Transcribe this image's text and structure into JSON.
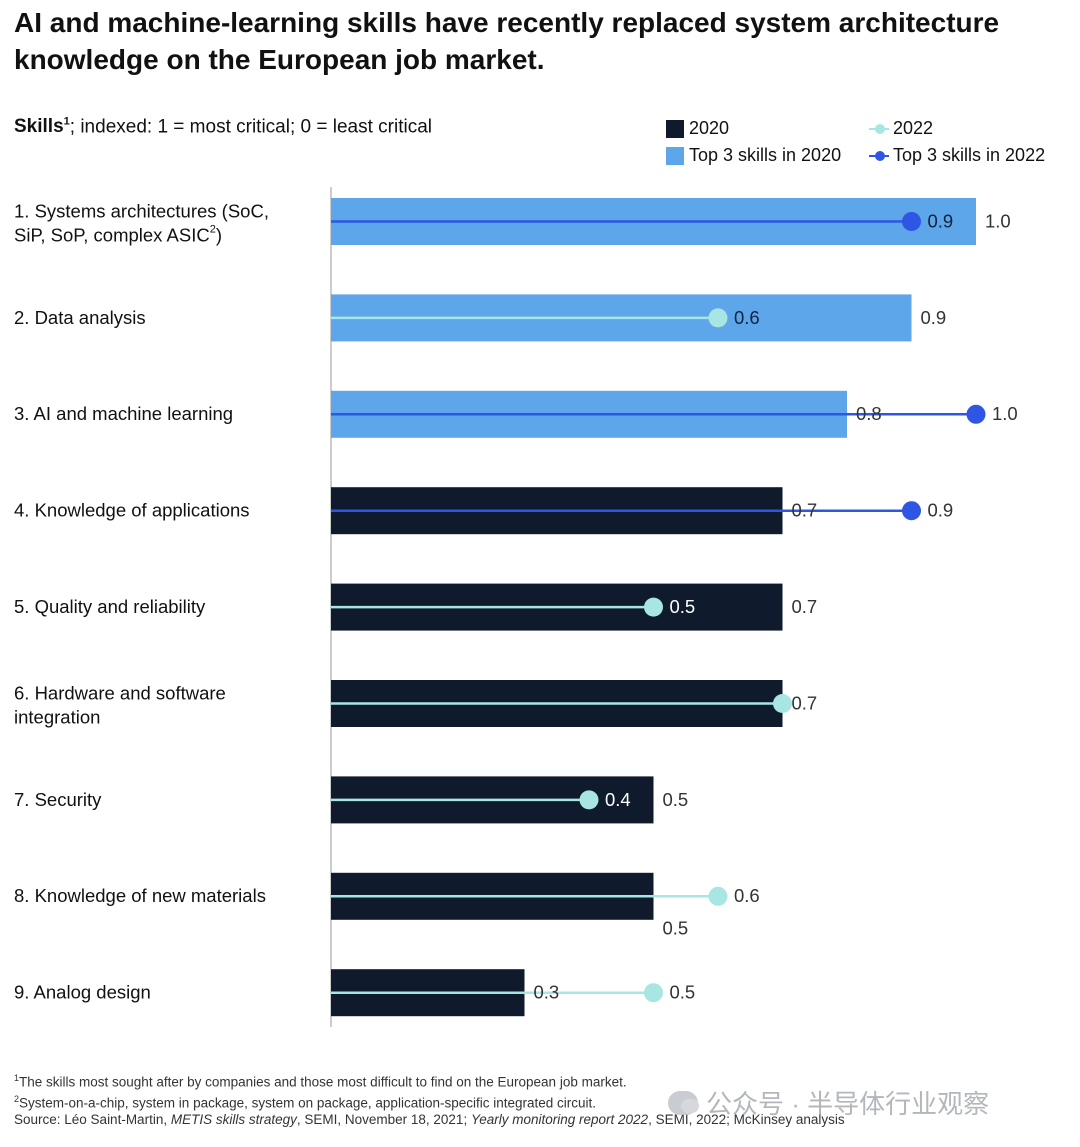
{
  "chart_data": {
    "type": "bar",
    "title": "AI and machine-learning skills have recently replaced system architecture knowledge on the European job market.",
    "subtitle_label": "Skills",
    "subtitle_sup": "1",
    "subtitle_rest": "; indexed: 1 = most critical; 0 = least critical",
    "xlim": [
      0,
      1.0
    ],
    "legend": {
      "bar_2020": "2020",
      "bar_top3_2020": "Top 3 skills in 2020",
      "marker_2022": "2022",
      "marker_top3_2022": "Top 3 skills in 2022"
    },
    "categories": [
      {
        "label_lines": [
          "1. Systems architectures (SoC,",
          "SiP, SoP, complex ASIC"
        ],
        "label_sup": "2",
        "label_tail": ")",
        "v2020": 1.0,
        "l2020": "1.0",
        "v2022": 0.9,
        "l2022": "0.9",
        "top3_2020": true,
        "top3_2022": true
      },
      {
        "label_lines": [
          "2. Data analysis"
        ],
        "v2020": 0.9,
        "l2020": "0.9",
        "v2022": 0.6,
        "l2022": "0.6",
        "top3_2020": true,
        "top3_2022": false
      },
      {
        "label_lines": [
          "3. AI and machine learning"
        ],
        "v2020": 0.8,
        "l2020": "0.8",
        "v2022": 1.0,
        "l2022": "1.0",
        "top3_2020": true,
        "top3_2022": true
      },
      {
        "label_lines": [
          "4. Knowledge of applications"
        ],
        "v2020": 0.7,
        "l2020": "0.7",
        "v2022": 0.9,
        "l2022": "0.9",
        "top3_2020": false,
        "top3_2022": true
      },
      {
        "label_lines": [
          "5. Quality and reliability"
        ],
        "v2020": 0.7,
        "l2020": "0.7",
        "v2022": 0.5,
        "l2022": "0.5",
        "top3_2020": false,
        "top3_2022": false
      },
      {
        "label_lines": [
          "6. Hardware and software",
          "integration"
        ],
        "v2020": 0.7,
        "l2020": "0.7",
        "v2022": 0.7,
        "l2022": "",
        "top3_2020": false,
        "top3_2022": false
      },
      {
        "label_lines": [
          "7. Security"
        ],
        "v2020": 0.5,
        "l2020": "0.5",
        "v2022": 0.4,
        "l2022": "0.4",
        "top3_2020": false,
        "top3_2022": false
      },
      {
        "label_lines": [
          "8. Knowledge of new materials"
        ],
        "v2020": 0.5,
        "l2020": "0.5",
        "v2022": 0.6,
        "l2022": "0.6",
        "top3_2020": false,
        "top3_2022": false
      },
      {
        "label_lines": [
          "9. Analog design"
        ],
        "v2020": 0.3,
        "l2020": "0.3",
        "v2022": 0.5,
        "l2022": "0.5",
        "top3_2020": false,
        "top3_2022": false
      }
    ],
    "colors": {
      "bar_2020": "#0f1b2c",
      "bar_top3_2020": "#5ea6ea",
      "line_2022": "#a8e6e3",
      "line_top3_2022": "#2f55e4",
      "axis": "#999999",
      "text": "#111111",
      "value_text": "#333333"
    }
  },
  "footnotes": {
    "f1_sup": "1",
    "f1": "The skills most sought after by companies and those most difficult to find on the European job market.",
    "f2_sup": "2",
    "f2": "System-on-a-chip, system in package, system on package, application-specific integrated circuit.",
    "source_a": "Source: Léo Saint-Martin, ",
    "source_b": "METIS skills strategy",
    "source_c": ", SEMI, November 18, 2021; ",
    "source_d": "Yearly monitoring report 2022",
    "source_e": ", SEMI, 2022; McKinsey analysis"
  },
  "watermark": "公众号 · 半导体行业观察"
}
